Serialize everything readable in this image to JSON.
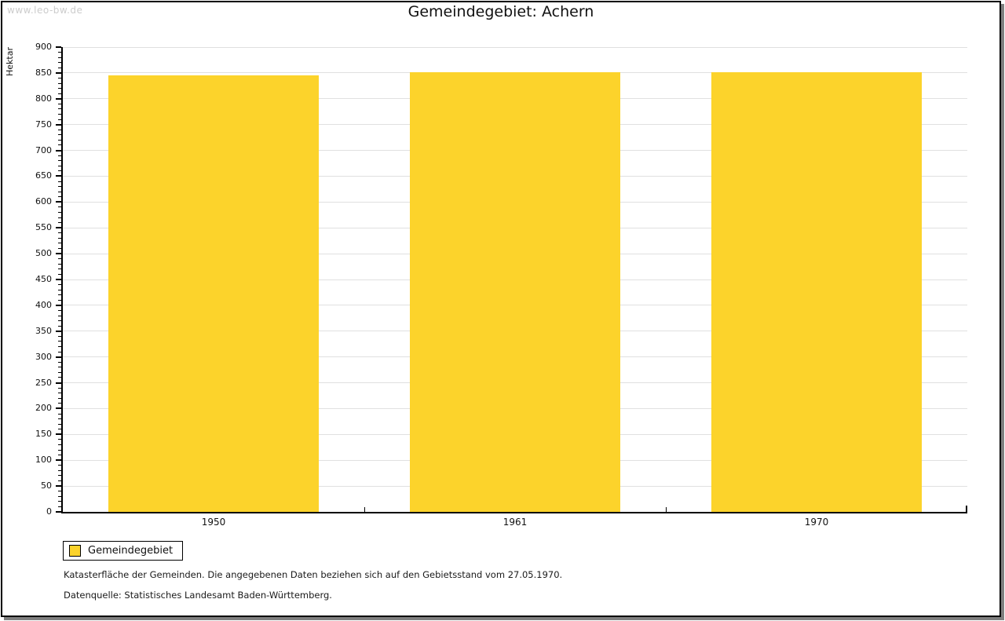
{
  "watermark": "www.leo-bw.de",
  "chart_data": {
    "type": "bar",
    "title": "Gemeindegebiet: Achern",
    "xlabel": "",
    "ylabel": "Hektar",
    "categories": [
      "1950",
      "1961",
      "1970"
    ],
    "series": [
      {
        "name": "Gemeindegebiet",
        "values": [
          845,
          852,
          851
        ]
      }
    ],
    "ylim": [
      0,
      900
    ],
    "yticks": [
      0,
      50,
      100,
      150,
      200,
      250,
      300,
      350,
      400,
      450,
      500,
      550,
      600,
      650,
      700,
      750,
      800,
      850,
      900
    ],
    "ytick_minor_step": 10,
    "grid": true,
    "legend_position": "bottom-left"
  },
  "colors": {
    "bar": "#FCD32B",
    "gridline": "#E0E0E0",
    "axis": "#000000",
    "watermark": "#CCCCCC",
    "frame_shadow": "#7F7F7F"
  },
  "legend": {
    "items": [
      {
        "label": "Gemeindegebiet",
        "color": "#FCD32B"
      }
    ]
  },
  "footnotes": [
    "Katasterfläche der Gemeinden. Die angegebenen Daten beziehen sich auf den Gebietsstand vom 27.05.1970.",
    "Datenquelle: Statistisches Landesamt Baden-Württemberg."
  ]
}
